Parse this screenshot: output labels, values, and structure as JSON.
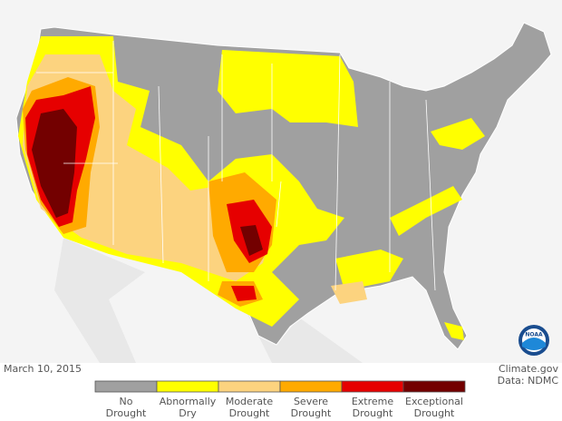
{
  "date": "March 10, 2015",
  "credit": "Climate.gov",
  "source": "Data: NDMC",
  "logo": "NOAA",
  "legend": {
    "items": [
      {
        "lines": [
          "No",
          "Drought"
        ],
        "color": "#a0a0a0"
      },
      {
        "lines": [
          "Abnormally",
          "Dry"
        ],
        "color": "#ffff00"
      },
      {
        "lines": [
          "Moderate",
          "Drought"
        ],
        "color": "#fcd37f"
      },
      {
        "lines": [
          "Severe",
          "Drought"
        ],
        "color": "#ffaa00"
      },
      {
        "lines": [
          "Extreme",
          "Drought"
        ],
        "color": "#e60000"
      },
      {
        "lines": [
          "Exceptional",
          "Drought"
        ],
        "color": "#730000"
      }
    ]
  }
}
